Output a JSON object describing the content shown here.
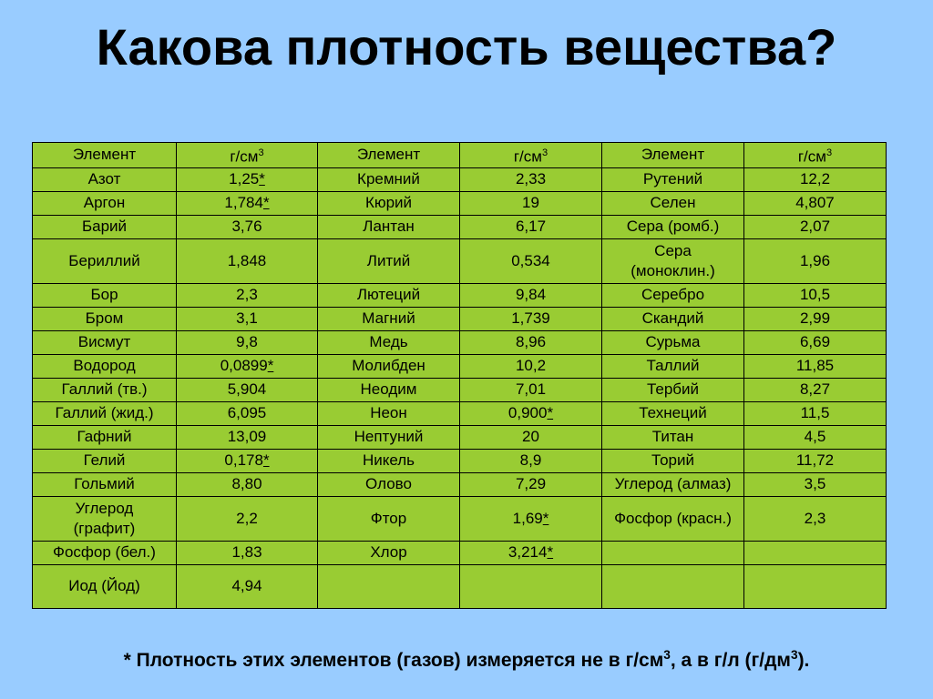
{
  "title": "Какова плотность вещества?",
  "headers": [
    "Элемент",
    "г/см",
    "3",
    "Элемент",
    "г/см",
    "3",
    "Элемент",
    "г/см",
    "3"
  ],
  "rows": [
    [
      [
        "Азот",
        "1,25",
        "*"
      ],
      [
        "Кремний",
        "2,33",
        ""
      ],
      [
        "Рутений",
        "12,2",
        ""
      ]
    ],
    [
      [
        "Аргон",
        "1,784",
        "*"
      ],
      [
        "Кюрий",
        "19",
        ""
      ],
      [
        "Селен",
        "4,807",
        ""
      ]
    ],
    [
      [
        "Барий",
        "3,76",
        ""
      ],
      [
        "Лантан",
        "6,17",
        ""
      ],
      [
        "Сера (ромб.)",
        "2,07",
        ""
      ]
    ],
    [
      [
        "Бериллий",
        "1,848",
        ""
      ],
      [
        "Литий",
        "0,534",
        ""
      ],
      [
        "Сера\n(моноклин.)",
        "1,96",
        ""
      ]
    ],
    [
      [
        "Бор",
        "2,3",
        ""
      ],
      [
        "Лютеций",
        "9,84",
        ""
      ],
      [
        "Серебро",
        "10,5",
        ""
      ]
    ],
    [
      [
        "Бром",
        "3,1",
        ""
      ],
      [
        "Магний",
        "1,739",
        ""
      ],
      [
        "Скандий",
        "2,99",
        ""
      ]
    ],
    [
      [
        "Висмут",
        "9,8",
        ""
      ],
      [
        "Медь",
        "8,96",
        ""
      ],
      [
        "Сурьма",
        "6,69",
        ""
      ]
    ],
    [
      [
        "Водород",
        "0,0899",
        "*"
      ],
      [
        "Молибден",
        "10,2",
        ""
      ],
      [
        "Таллий",
        "11,85",
        ""
      ]
    ],
    [
      [
        "Галлий (тв.)",
        "5,904",
        ""
      ],
      [
        "Неодим",
        "7,01",
        ""
      ],
      [
        "Тербий",
        "8,27",
        ""
      ]
    ],
    [
      [
        "Галлий (жид.)",
        "6,095",
        ""
      ],
      [
        "Неон",
        "0,900",
        "*"
      ],
      [
        "Технеций",
        "11,5",
        ""
      ]
    ],
    [
      [
        "Гафний",
        "13,09",
        ""
      ],
      [
        "Нептуний",
        "20",
        ""
      ],
      [
        "Титан",
        "4,5",
        ""
      ]
    ],
    [
      [
        "Гелий",
        "0,178",
        "*"
      ],
      [
        "Никель",
        "8,9",
        ""
      ],
      [
        "Торий",
        "11,72",
        ""
      ]
    ],
    [
      [
        "Гольмий",
        "8,80",
        ""
      ],
      [
        "Олово",
        "7,29",
        ""
      ],
      [
        "Углерод (алмаз)",
        "3,5",
        ""
      ]
    ],
    [
      [
        "Углерод\n(графит)",
        "2,2",
        ""
      ],
      [
        "Фтор",
        "1,69",
        "*"
      ],
      [
        "Фосфор (красн.)",
        "2,3",
        ""
      ]
    ],
    [
      [
        "Фосфор (бел.)",
        "1,83",
        ""
      ],
      [
        "Хлор",
        "3,214",
        "*"
      ],
      [
        "",
        "",
        " "
      ]
    ],
    [
      [
        "Иод (Йод)",
        "4,94",
        ""
      ],
      [
        "",
        "",
        ""
      ],
      [
        "",
        "",
        ""
      ]
    ]
  ],
  "footer": {
    "part1": "* Плотность этих элементов (газов) измеряется не в г/см",
    "sup1": "3",
    "part2": ", а в г/л (г/дм",
    "sup2": "3",
    "part3": ")."
  }
}
